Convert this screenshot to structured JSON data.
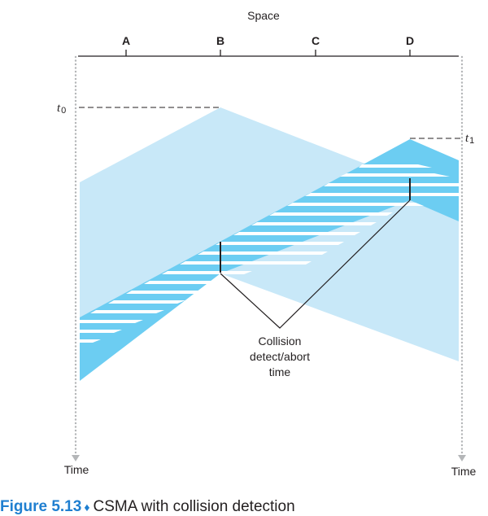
{
  "diagram": {
    "axis_title": "Space",
    "nodes": [
      "A",
      "B",
      "C",
      "D"
    ],
    "time_markers": {
      "t0": {
        "letter": "t",
        "subscript": "0"
      },
      "t1": {
        "letter": "t",
        "subscript": "1"
      }
    },
    "time_axis_labels": {
      "left": "Time",
      "right": "Time"
    },
    "annotation": [
      "Collision",
      "detect/abort",
      "time"
    ]
  },
  "caption": {
    "figure_number": "Figure 5.13",
    "separator": "♦",
    "text": "CSMA with collision detection"
  },
  "colors": {
    "light_blue": "#c8e8f8",
    "medium_blue": "#6ccdf2",
    "text": "#231f20",
    "axis_arrow": "#b4b6b8",
    "caption_accent": "#1f7fd0"
  }
}
